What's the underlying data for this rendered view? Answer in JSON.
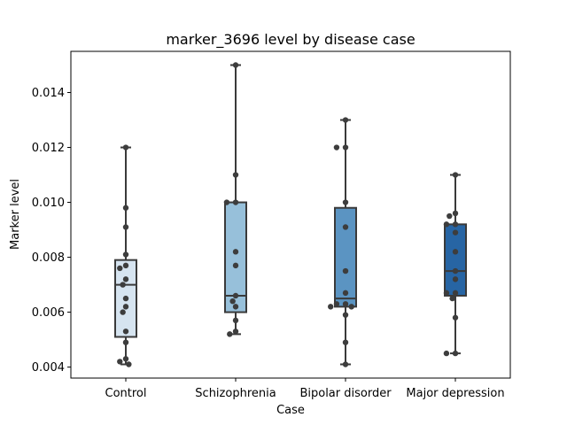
{
  "chart_data": {
    "type": "box",
    "title": "marker_3696 level by disease case",
    "xlabel": "Case",
    "ylabel": "Marker level",
    "ylim": [
      0.0036,
      0.0155
    ],
    "yticks": [
      "0.004",
      "0.006",
      "0.008",
      "0.010",
      "0.012",
      "0.014"
    ],
    "grid": false,
    "categories": [
      "Control",
      "Schizophrenia",
      "Bipolar disorder",
      "Major depression"
    ],
    "colors": [
      "#d6e4f0",
      "#97c0da",
      "#5b94c2",
      "#2765a4"
    ],
    "boxes": [
      {
        "name": "Control",
        "min": 0.0041,
        "q1": 0.0051,
        "median": 0.007,
        "q3": 0.0079,
        "max": 0.012
      },
      {
        "name": "Schizophrenia",
        "min": 0.0052,
        "q1": 0.006,
        "median": 0.0066,
        "q3": 0.01,
        "max": 0.015
      },
      {
        "name": "Bipolar disorder",
        "min": 0.0041,
        "q1": 0.0062,
        "median": 0.0065,
        "q3": 0.0098,
        "max": 0.013
      },
      {
        "name": "Major depression",
        "min": 0.0045,
        "q1": 0.0066,
        "median": 0.0075,
        "q3": 0.0092,
        "max": 0.011
      }
    ],
    "points": [
      [
        0.012,
        0.0098,
        0.0091,
        0.0081,
        0.0077,
        0.0076,
        0.0072,
        0.007,
        0.0065,
        0.0062,
        0.006,
        0.0053,
        0.0049,
        0.0043,
        0.0042,
        0.0041
      ],
      [
        0.015,
        0.011,
        0.01,
        0.01,
        0.0082,
        0.0077,
        0.0066,
        0.0064,
        0.0062,
        0.0057,
        0.0053,
        0.0052
      ],
      [
        0.013,
        0.012,
        0.012,
        0.01,
        0.0091,
        0.0075,
        0.0067,
        0.0063,
        0.0063,
        0.0062,
        0.0062,
        0.0059,
        0.0049,
        0.0041
      ],
      [
        0.011,
        0.0096,
        0.0095,
        0.0092,
        0.0092,
        0.0089,
        0.0082,
        0.0075,
        0.0072,
        0.0067,
        0.0067,
        0.0065,
        0.0058,
        0.0045,
        0.0045
      ]
    ]
  }
}
